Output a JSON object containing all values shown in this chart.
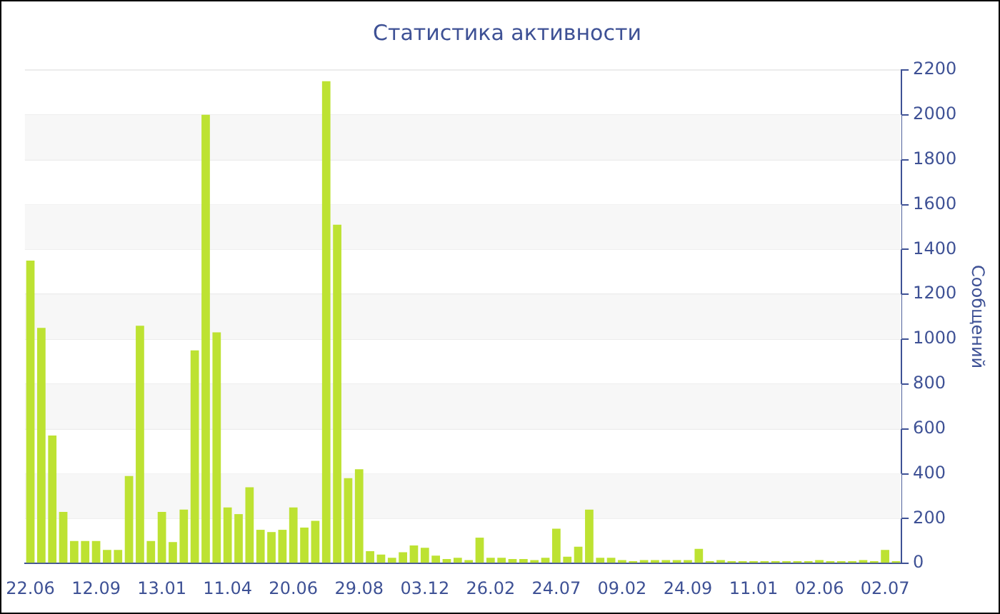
{
  "chart_data": {
    "type": "bar",
    "title": "Статистика активности",
    "ylabel": "Сообщений",
    "categories": [
      "22.06",
      null,
      null,
      null,
      null,
      null,
      "12.09",
      null,
      null,
      null,
      null,
      null,
      "13.01",
      null,
      null,
      null,
      null,
      null,
      "11.04",
      null,
      null,
      null,
      null,
      null,
      "20.06",
      null,
      null,
      null,
      null,
      null,
      "29.08",
      null,
      null,
      null,
      null,
      null,
      "03.12",
      null,
      null,
      null,
      null,
      null,
      "26.02",
      null,
      null,
      null,
      null,
      null,
      "24.07",
      null,
      null,
      null,
      null,
      null,
      "09.02",
      null,
      null,
      null,
      null,
      null,
      "24.09",
      null,
      null,
      null,
      null,
      null,
      "11.01",
      null,
      null,
      null,
      null,
      null,
      "02.06",
      null,
      null,
      null,
      null,
      null,
      "02.07",
      null
    ],
    "values": [
      1350,
      1050,
      570,
      230,
      100,
      100,
      100,
      60,
      60,
      390,
      1060,
      100,
      230,
      95,
      240,
      950,
      2000,
      1030,
      250,
      220,
      340,
      150,
      140,
      150,
      250,
      160,
      190,
      2150,
      1510,
      380,
      420,
      55,
      40,
      25,
      50,
      80,
      70,
      35,
      20,
      25,
      15,
      115,
      25,
      25,
      20,
      20,
      15,
      25,
      155,
      30,
      75,
      240,
      25,
      25,
      15,
      10,
      15,
      15,
      15,
      15,
      15,
      65,
      10,
      15,
      10,
      10,
      10,
      10,
      10,
      10,
      10,
      10,
      15,
      10,
      10,
      10,
      15,
      10,
      60,
      10
    ],
    "color": "#bde232",
    "ylim": [
      0,
      2200
    ],
    "yticks": [
      0,
      200,
      400,
      600,
      800,
      1000,
      1200,
      1400,
      1600,
      1800,
      2000,
      2200
    ],
    "grid": true
  }
}
